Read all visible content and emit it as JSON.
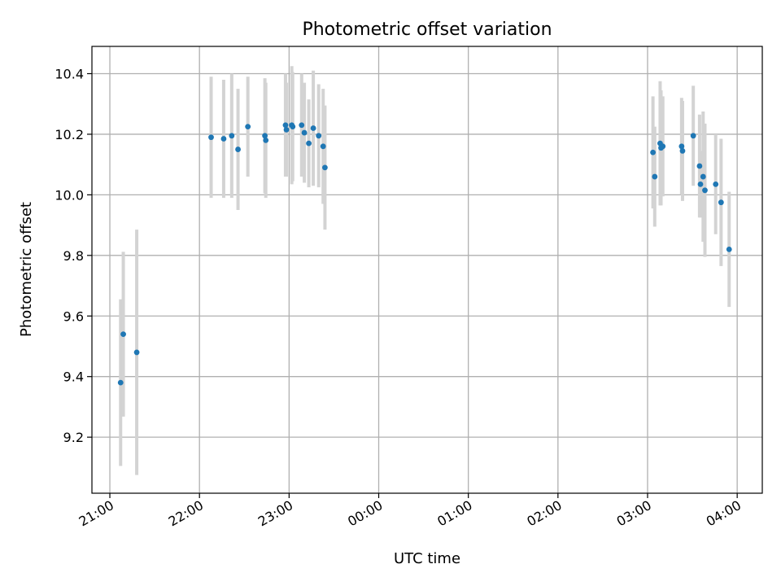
{
  "chart_data": {
    "type": "scatter",
    "title": "Photometric offset variation",
    "xlabel": "UTC time",
    "ylabel": "Photometric offset",
    "x_unit": "hours since 21:00 UTC",
    "xlim": [
      -0.2,
      7.28
    ],
    "ylim": [
      9.015,
      10.49
    ],
    "x_ticks": [
      {
        "value": 0,
        "label": "21:00"
      },
      {
        "value": 1,
        "label": "22:00"
      },
      {
        "value": 2,
        "label": "23:00"
      },
      {
        "value": 3,
        "label": "00:00"
      },
      {
        "value": 4,
        "label": "01:00"
      },
      {
        "value": 5,
        "label": "02:00"
      },
      {
        "value": 6,
        "label": "03:00"
      },
      {
        "value": 7,
        "label": "04:00"
      }
    ],
    "y_ticks": [
      {
        "value": 9.2,
        "label": "9.2"
      },
      {
        "value": 9.4,
        "label": "9.4"
      },
      {
        "value": 9.6,
        "label": "9.6"
      },
      {
        "value": 9.8,
        "label": "9.8"
      },
      {
        "value": 10.0,
        "label": "10.0"
      },
      {
        "value": 10.2,
        "label": "10.2"
      },
      {
        "value": 10.4,
        "label": "10.4"
      }
    ],
    "grid": true,
    "colors": {
      "points": "#1f77b4",
      "errorbars": "#d3d3d3"
    },
    "points": [
      {
        "x": 0.12,
        "y": 9.38,
        "err": 0.275
      },
      {
        "x": 0.15,
        "y": 9.54,
        "err": 0.272
      },
      {
        "x": 0.3,
        "y": 9.48,
        "err": 0.405
      },
      {
        "x": 1.13,
        "y": 10.19,
        "err": 0.2
      },
      {
        "x": 1.27,
        "y": 10.185,
        "err": 0.195
      },
      {
        "x": 1.36,
        "y": 10.195,
        "err": 0.205
      },
      {
        "x": 1.43,
        "y": 10.15,
        "err": 0.2
      },
      {
        "x": 1.54,
        "y": 10.225,
        "err": 0.165
      },
      {
        "x": 1.73,
        "y": 10.195,
        "err": 0.19
      },
      {
        "x": 1.74,
        "y": 10.18,
        "err": 0.19
      },
      {
        "x": 1.96,
        "y": 10.23,
        "err": 0.17
      },
      {
        "x": 1.97,
        "y": 10.215,
        "err": 0.155
      },
      {
        "x": 2.03,
        "y": 10.23,
        "err": 0.195
      },
      {
        "x": 2.04,
        "y": 10.225,
        "err": 0.18
      },
      {
        "x": 2.14,
        "y": 10.23,
        "err": 0.17
      },
      {
        "x": 2.17,
        "y": 10.205,
        "err": 0.165
      },
      {
        "x": 2.22,
        "y": 10.17,
        "err": 0.145
      },
      {
        "x": 2.27,
        "y": 10.22,
        "err": 0.19
      },
      {
        "x": 2.33,
        "y": 10.195,
        "err": 0.17
      },
      {
        "x": 2.38,
        "y": 10.16,
        "err": 0.19
      },
      {
        "x": 2.4,
        "y": 10.09,
        "err": 0.205
      },
      {
        "x": 6.06,
        "y": 10.14,
        "err": 0.185
      },
      {
        "x": 6.08,
        "y": 10.06,
        "err": 0.165
      },
      {
        "x": 6.14,
        "y": 10.17,
        "err": 0.205
      },
      {
        "x": 6.15,
        "y": 10.155,
        "err": 0.19
      },
      {
        "x": 6.17,
        "y": 10.16,
        "err": 0.165
      },
      {
        "x": 6.38,
        "y": 10.16,
        "err": 0.16
      },
      {
        "x": 6.39,
        "y": 10.145,
        "err": 0.165
      },
      {
        "x": 6.51,
        "y": 10.195,
        "err": 0.165
      },
      {
        "x": 6.58,
        "y": 10.095,
        "err": 0.17
      },
      {
        "x": 6.59,
        "y": 10.035,
        "err": 0.11
      },
      {
        "x": 6.62,
        "y": 10.06,
        "err": 0.215
      },
      {
        "x": 6.64,
        "y": 10.015,
        "err": 0.22
      },
      {
        "x": 6.76,
        "y": 10.035,
        "err": 0.165
      },
      {
        "x": 6.82,
        "y": 9.975,
        "err": 0.21
      },
      {
        "x": 6.91,
        "y": 9.82,
        "err": 0.19
      }
    ]
  }
}
